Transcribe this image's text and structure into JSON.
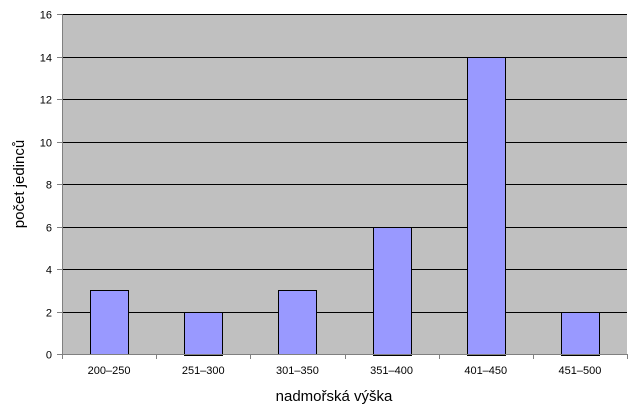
{
  "chart_data": {
    "type": "bar",
    "categories": [
      "200–250",
      "251–300",
      "301–350",
      "351–400",
      "401–450",
      "451–500"
    ],
    "values": [
      3,
      2,
      3,
      6,
      14,
      2
    ],
    "xlabel": "nadmořská výška",
    "ylabel": "počet jedinců",
    "ylim": [
      0,
      16
    ],
    "yticks": [
      0,
      2,
      4,
      6,
      8,
      10,
      12,
      14,
      16
    ],
    "grid": true,
    "legend": "none",
    "colors": {
      "plot_background": "#c0c0c0",
      "bar_fill": "#9999ff",
      "bar_stroke": "#000000",
      "gridline": "#000000",
      "axis": "#808080"
    }
  }
}
